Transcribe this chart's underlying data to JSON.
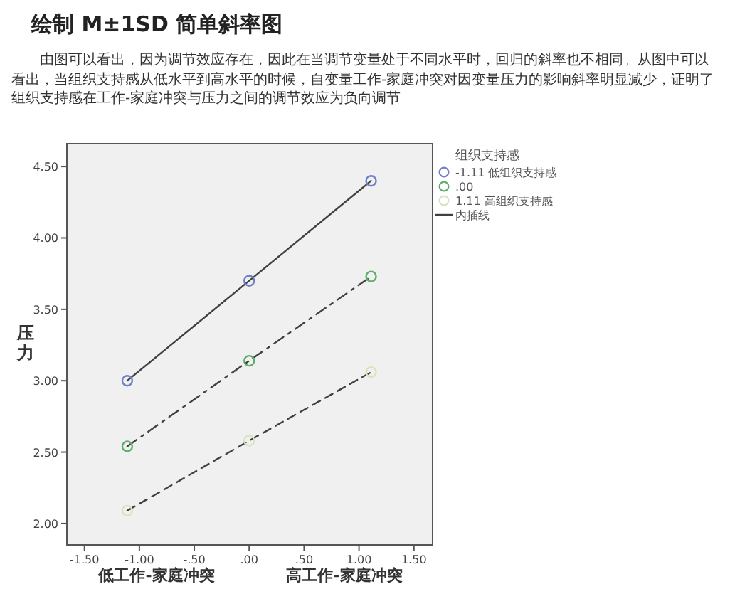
{
  "chart_data": {
    "type": "line",
    "title": "绘制 M±1SD 简单斜率图",
    "subtitle": "由图可以看出，因为调节效应存在，因此在当调节变量处于不同水平时，回归的斜率也不相同。从图中可以看出，当组织支持感从低水平到高水平的时候，自变量工作-家庭冲突对因变量压力的影响斜率明显减少，证明了组织支持感在工作-家庭冲突与压力之间的调节效应为负向调节",
    "ylabel": "压力",
    "legend_title": "组织支持感",
    "annotations": [
      "低工作-家庭冲突",
      "高工作-家庭冲突"
    ],
    "x": [
      -1.11,
      0,
      1.11
    ],
    "series": [
      {
        "name": "-1.11 低组织支持感",
        "type": "scatter",
        "marker": "circle",
        "color": "#6f7fc8",
        "values": [
          3.0,
          3.7,
          4.4
        ]
      },
      {
        "name": ".00",
        "type": "scatter",
        "marker": "circle",
        "color": "#5fae6a",
        "values": [
          2.54,
          3.14,
          3.73
        ]
      },
      {
        "name": "1.11 高组织支持感",
        "type": "scatter",
        "marker": "circle",
        "color": "#d6e4c0",
        "values": [
          2.09,
          2.58,
          3.06
        ]
      },
      {
        "name": "内插线",
        "color": "#404040",
        "line_style": "solid",
        "values": [
          3.0,
          3.7,
          4.4
        ]
      },
      {
        "color": "#404040",
        "line_style": "dashdot",
        "values": [
          2.54,
          3.14,
          3.73
        ]
      },
      {
        "color": "#404040",
        "line_style": "dashed",
        "values": [
          2.09,
          2.58,
          3.06
        ]
      }
    ],
    "xlim": [
      -1.66,
      1.67
    ],
    "ylim": [
      1.85,
      4.66
    ],
    "xticks": [
      {
        "value": -1.5,
        "label": "-1.50"
      },
      {
        "value": -1,
        "label": "-1.00"
      },
      {
        "value": -0.5,
        "label": "-.50"
      },
      {
        "value": 0,
        "label": ".00"
      },
      {
        "value": 0.5,
        "label": ".50"
      },
      {
        "value": 1,
        "label": "1.00"
      },
      {
        "value": 1.5,
        "label": "1.50"
      }
    ],
    "yticks": [
      {
        "value": 2,
        "label": "2.00"
      },
      {
        "value": 2.5,
        "label": "2.50"
      },
      {
        "value": 3,
        "label": "3.00"
      },
      {
        "value": 3.5,
        "label": "3.50"
      },
      {
        "value": 4,
        "label": "4.00"
      },
      {
        "value": 4.5,
        "label": "4.50"
      }
    ],
    "grid": false,
    "legend": "right"
  }
}
